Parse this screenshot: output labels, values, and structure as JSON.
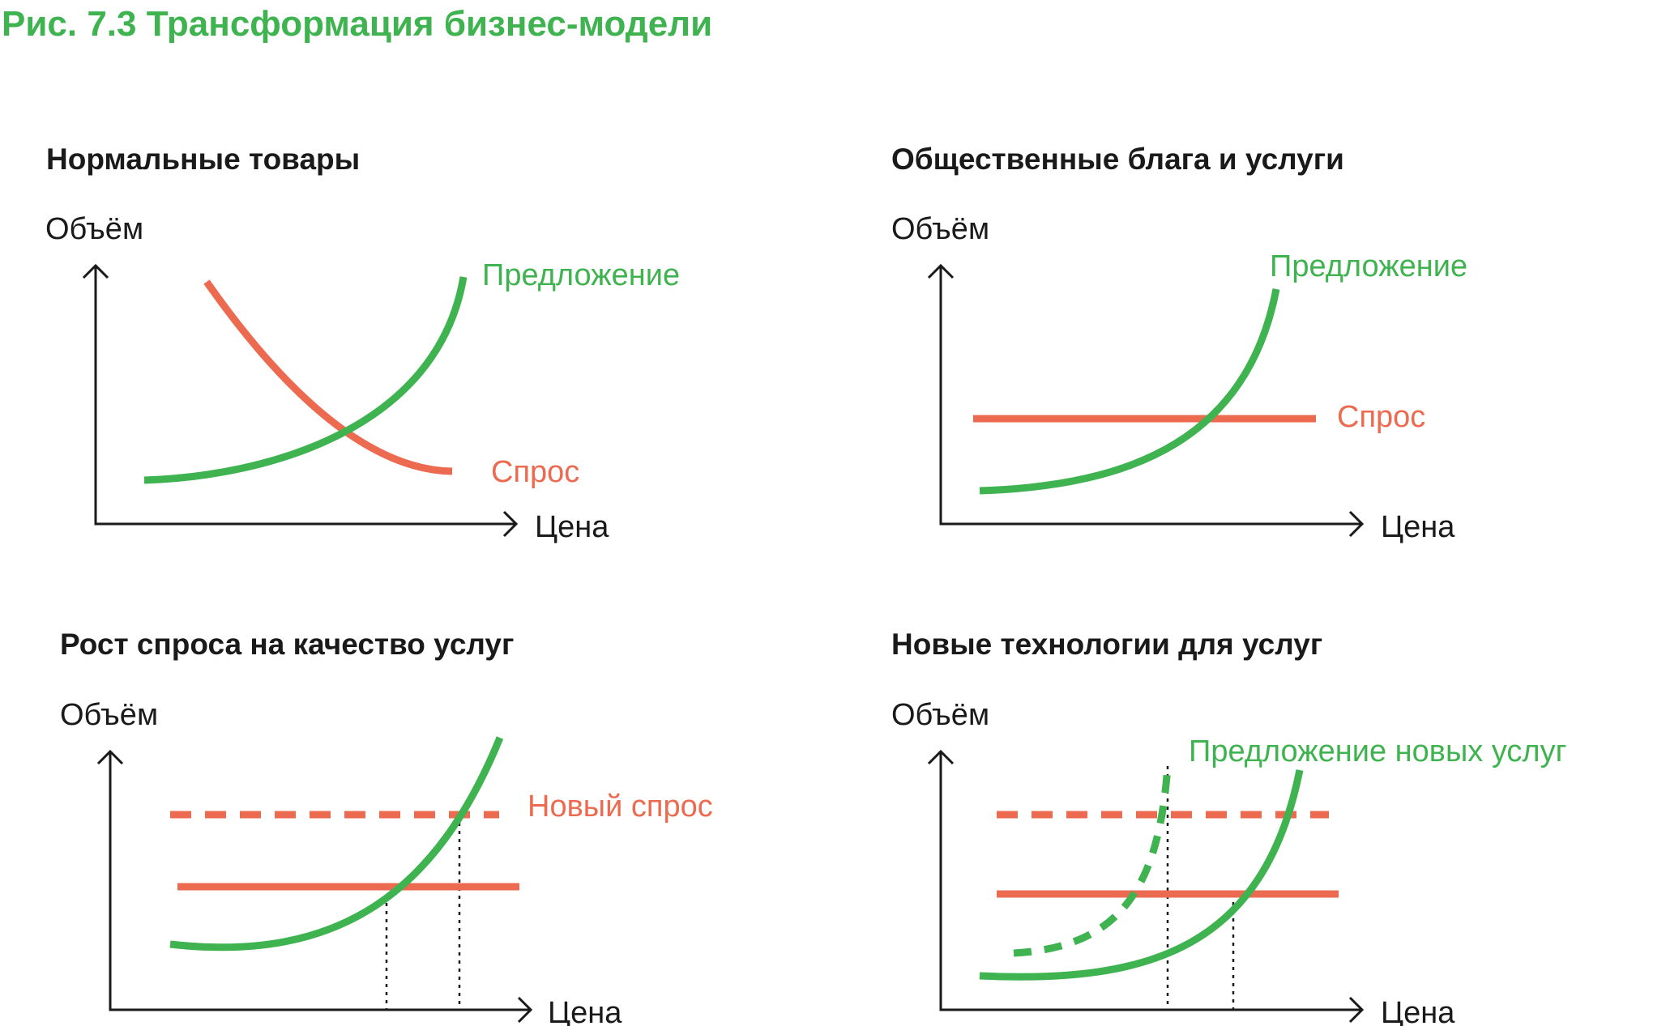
{
  "figure": {
    "title": "Рис. 7.3 Трансформация бизнес-модели",
    "colors": {
      "title": "#3fb34f",
      "supply": "#3fb34f",
      "demand": "#ec6b50",
      "axis": "#1a1a1a"
    }
  },
  "panels": [
    {
      "title": "Нормальные товары",
      "y_label": "Объём",
      "x_label": "Цена",
      "supply_label": "Предложение",
      "demand_label": "Спрос"
    },
    {
      "title": "Общественные блага и услуги",
      "y_label": "Объём",
      "x_label": "Цена",
      "supply_label": "Предложение",
      "demand_label": "Спрос"
    },
    {
      "title": "Рост спроса на качество услуг",
      "y_label": "Объём",
      "x_label": "Цена",
      "new_demand_label": "Новый спрос"
    },
    {
      "title": "Новые технологии для услуг",
      "y_label": "Объём",
      "x_label": "Цена",
      "new_supply_label": "Предложение новых услуг"
    }
  ]
}
